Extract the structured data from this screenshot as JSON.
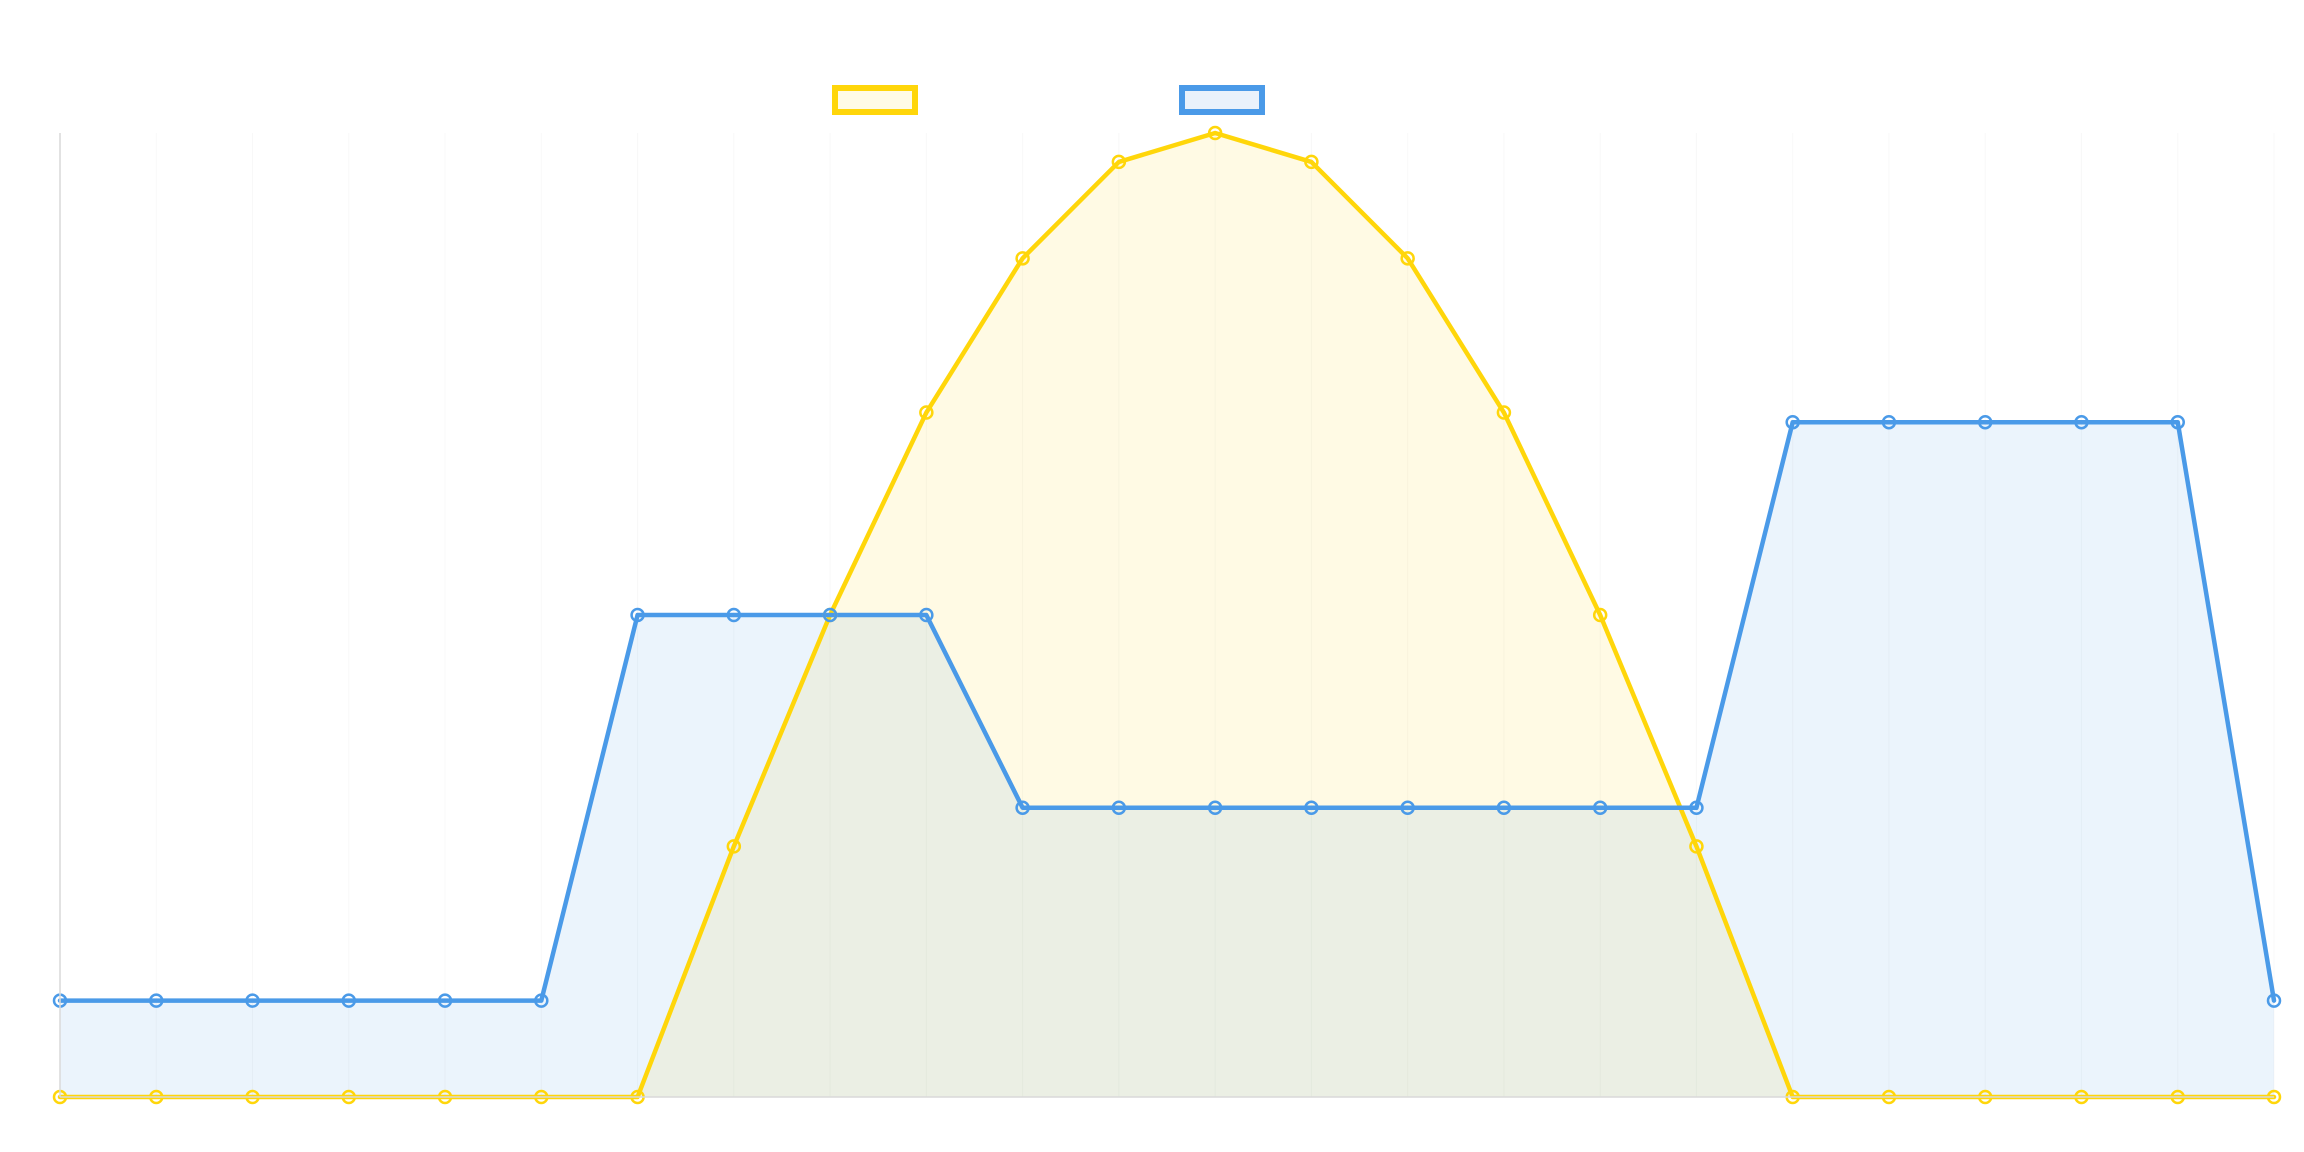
{
  "chart_data": {
    "type": "area",
    "title": "",
    "xlabel": "",
    "ylabel": "",
    "x": [
      0,
      1,
      2,
      3,
      4,
      5,
      6,
      7,
      8,
      9,
      10,
      11,
      12,
      13,
      14,
      15,
      16,
      17,
      18,
      19,
      20,
      21,
      22,
      23
    ],
    "ylim": [
      0,
      10
    ],
    "grid": false,
    "legend": "top",
    "series": [
      {
        "color": "#FFD60A",
        "fill": "#FFFBE5",
        "values": [
          0,
          0,
          0,
          0,
          0,
          0,
          0,
          2.6,
          5,
          7.1,
          8.7,
          9.7,
          10,
          9.7,
          8.7,
          7.1,
          5,
          2.6,
          0,
          0,
          0,
          0,
          0,
          0
        ]
      },
      {
        "color": "#4A9AE8",
        "fill": "#EAF2FB",
        "values": [
          1,
          1,
          1,
          1,
          1,
          1,
          5,
          5,
          5,
          5,
          3,
          3,
          3,
          3,
          3,
          3,
          3,
          3,
          7,
          7,
          7,
          7,
          7,
          1
        ]
      }
    ]
  }
}
